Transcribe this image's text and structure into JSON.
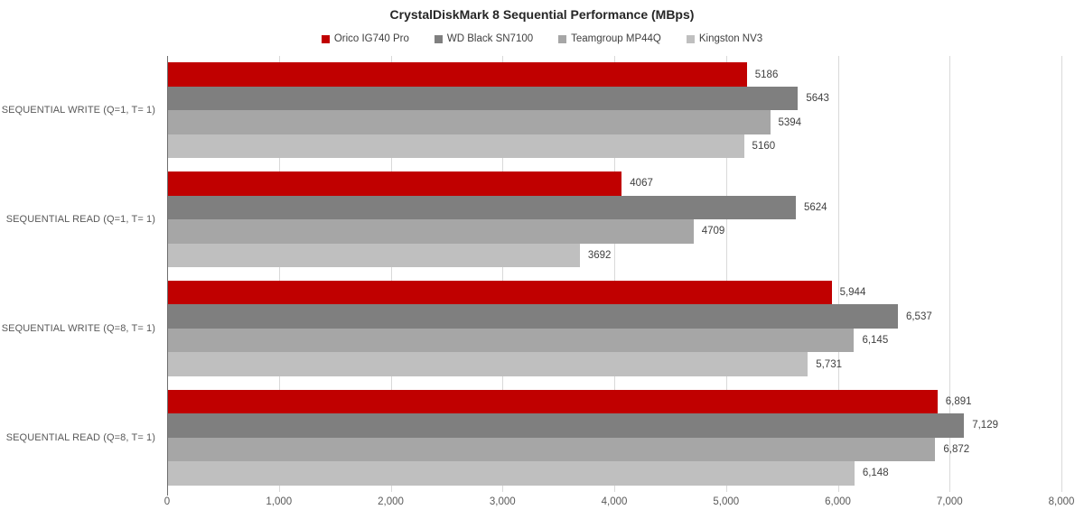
{
  "title": "CrystalDiskMark 8 Sequential Performance (MBps)",
  "colors": {
    "accent_red": "#C00000",
    "dark_gray": "#7F7F7F",
    "medium_gray": "#A6A6A6",
    "light_gray": "#BFBFBF",
    "gridline": "#D9D9D9",
    "axis_line": "#6E6E6E",
    "label_text": "#404040",
    "category_text": "#595959"
  },
  "chart_data": {
    "type": "bar",
    "orientation": "horizontal",
    "title": "CrystalDiskMark 8 Sequential Performance (MBps)",
    "categories": [
      "SEQUENTIAL WRITE (Q=1, T= 1)",
      "SEQUENTIAL READ (Q=1, T= 1)",
      "SEQUENTIAL WRITE (Q=8, T= 1)",
      "SEQUENTIAL READ (Q=8, T= 1)"
    ],
    "series": [
      {
        "name": "Orico IG740 Pro",
        "color": "#C00000",
        "values": [
          5186,
          4067,
          5944,
          6891
        ],
        "labels": [
          "5186",
          "4067",
          "5,944",
          "6,891"
        ]
      },
      {
        "name": "WD Black SN7100",
        "color": "#7F7F7F",
        "values": [
          5643,
          5624,
          6537,
          7129
        ],
        "labels": [
          "5643",
          "5624",
          "6,537",
          "7,129"
        ]
      },
      {
        "name": "Teamgroup MP44Q",
        "color": "#A6A6A6",
        "values": [
          5394,
          4709,
          6145,
          6872
        ],
        "labels": [
          "5394",
          "4709",
          "6,145",
          "6,872"
        ]
      },
      {
        "name": "Kingston NV3",
        "color": "#BFBFBF",
        "values": [
          5160,
          3692,
          5731,
          6148
        ],
        "labels": [
          "5160",
          "3692",
          "5,731",
          "6,148"
        ]
      }
    ],
    "xlabel": "",
    "ylabel": "",
    "xlim": [
      0,
      8000
    ],
    "x_tick_step": 1000,
    "x_tick_labels": [
      "0",
      "1,000",
      "2,000",
      "3,000",
      "4,000",
      "5,000",
      "6,000",
      "7,000",
      "8,000"
    ],
    "grid": "vertical",
    "legend_position": "top"
  }
}
